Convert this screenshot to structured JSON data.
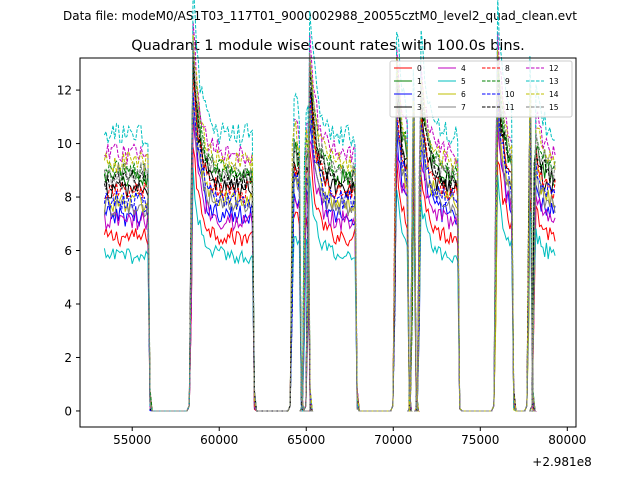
{
  "chart_data": {
    "type": "line",
    "suptitle": "Data file: modeM0/AS1T03_117T01_9000002988_20055cztM0_level2_quad_clean.evt",
    "title": "Quadrant 1 module wise count rates with 100.0s bins.",
    "xlabel": "",
    "ylabel": "",
    "x_offset_label": "+2.981e8",
    "xlim": [
      52000,
      80500
    ],
    "ylim": [
      -0.6,
      13.2
    ],
    "xticks": [
      55000,
      60000,
      65000,
      70000,
      75000,
      80000
    ],
    "xtick_labels": [
      "55000",
      "60000",
      "65000",
      "70000",
      "75000",
      "80000"
    ],
    "yticks": [
      0,
      2,
      4,
      6,
      8,
      10,
      12
    ],
    "ytick_labels": [
      "0",
      "2",
      "4",
      "6",
      "8",
      "10",
      "12"
    ],
    "legend_position": "top-right",
    "segments": [
      {
        "start": 53400,
        "end": 55900,
        "peak": 0.0
      },
      {
        "start": 58400,
        "end": 61900,
        "peak": 1.0
      },
      {
        "start": 64200,
        "end": 64600,
        "peak": 0.3
      },
      {
        "start": 64900,
        "end": 65100,
        "peak": 0.2
      },
      {
        "start": 65100,
        "end": 67800,
        "peak": 0.9
      },
      {
        "start": 70100,
        "end": 70800,
        "peak": 0.8
      },
      {
        "start": 71100,
        "end": 71200,
        "peak": 0.5
      },
      {
        "start": 71500,
        "end": 73700,
        "peak": 0.7
      },
      {
        "start": 75900,
        "end": 76800,
        "peak": 0.9
      },
      {
        "start": 77800,
        "end": 77900,
        "peak": 0.5
      },
      {
        "start": 78100,
        "end": 79300,
        "peak": 0.3
      }
    ],
    "series": [
      {
        "name": "0",
        "base": 6.5,
        "amp": 0.35,
        "color": "#ff0000",
        "dashed": false
      },
      {
        "name": "1",
        "base": 8.7,
        "amp": 0.4,
        "color": "#008000",
        "dashed": false
      },
      {
        "name": "2",
        "base": 7.3,
        "amp": 0.4,
        "color": "#0000ff",
        "dashed": false
      },
      {
        "name": "3",
        "base": 8.3,
        "amp": 0.4,
        "color": "#000000",
        "dashed": false
      },
      {
        "name": "4",
        "base": 7.1,
        "amp": 0.4,
        "color": "#bf00bf",
        "dashed": false
      },
      {
        "name": "5",
        "base": 5.8,
        "amp": 0.3,
        "color": "#00bfbf",
        "dashed": false
      },
      {
        "name": "6",
        "base": 7.8,
        "amp": 0.4,
        "color": "#bfbf00",
        "dashed": false
      },
      {
        "name": "7",
        "base": 7.6,
        "amp": 0.35,
        "color": "#808080",
        "dashed": false
      },
      {
        "name": "8",
        "base": 8.2,
        "amp": 0.4,
        "color": "#ff0000",
        "dashed": true
      },
      {
        "name": "9",
        "base": 9.0,
        "amp": 0.4,
        "color": "#008000",
        "dashed": true
      },
      {
        "name": "10",
        "base": 7.9,
        "amp": 0.4,
        "color": "#0000ff",
        "dashed": true
      },
      {
        "name": "11",
        "base": 8.6,
        "amp": 0.4,
        "color": "#000000",
        "dashed": true
      },
      {
        "name": "12",
        "base": 9.6,
        "amp": 0.4,
        "color": "#bf00bf",
        "dashed": true
      },
      {
        "name": "13",
        "base": 10.3,
        "amp": 0.45,
        "color": "#00bfbf",
        "dashed": true
      },
      {
        "name": "14",
        "base": 9.3,
        "amp": 0.4,
        "color": "#bfbf00",
        "dashed": true
      },
      {
        "name": "15",
        "base": 8.9,
        "amp": 0.4,
        "color": "#808080",
        "dashed": true
      }
    ]
  }
}
